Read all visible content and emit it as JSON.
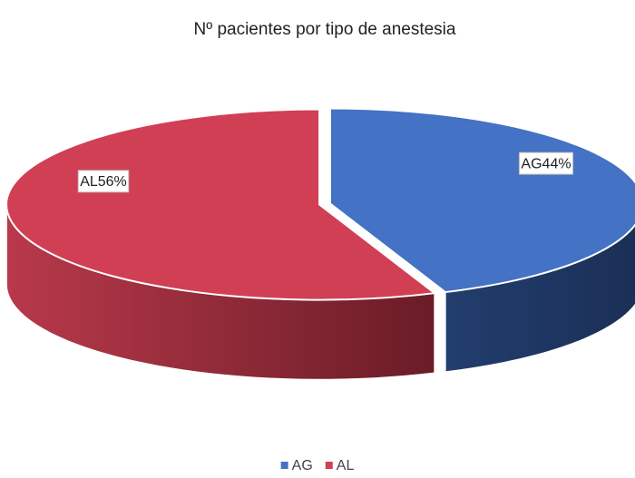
{
  "chart_data": {
    "type": "pie",
    "title": "Nº pacientes por tipo de anestesia",
    "categories": [
      "AG",
      "AL"
    ],
    "values": [
      44,
      56
    ],
    "value_labels": [
      "AG44%",
      "AL56%"
    ],
    "colors": [
      "#4472c4",
      "#d13f55"
    ],
    "legend": "bottom"
  }
}
